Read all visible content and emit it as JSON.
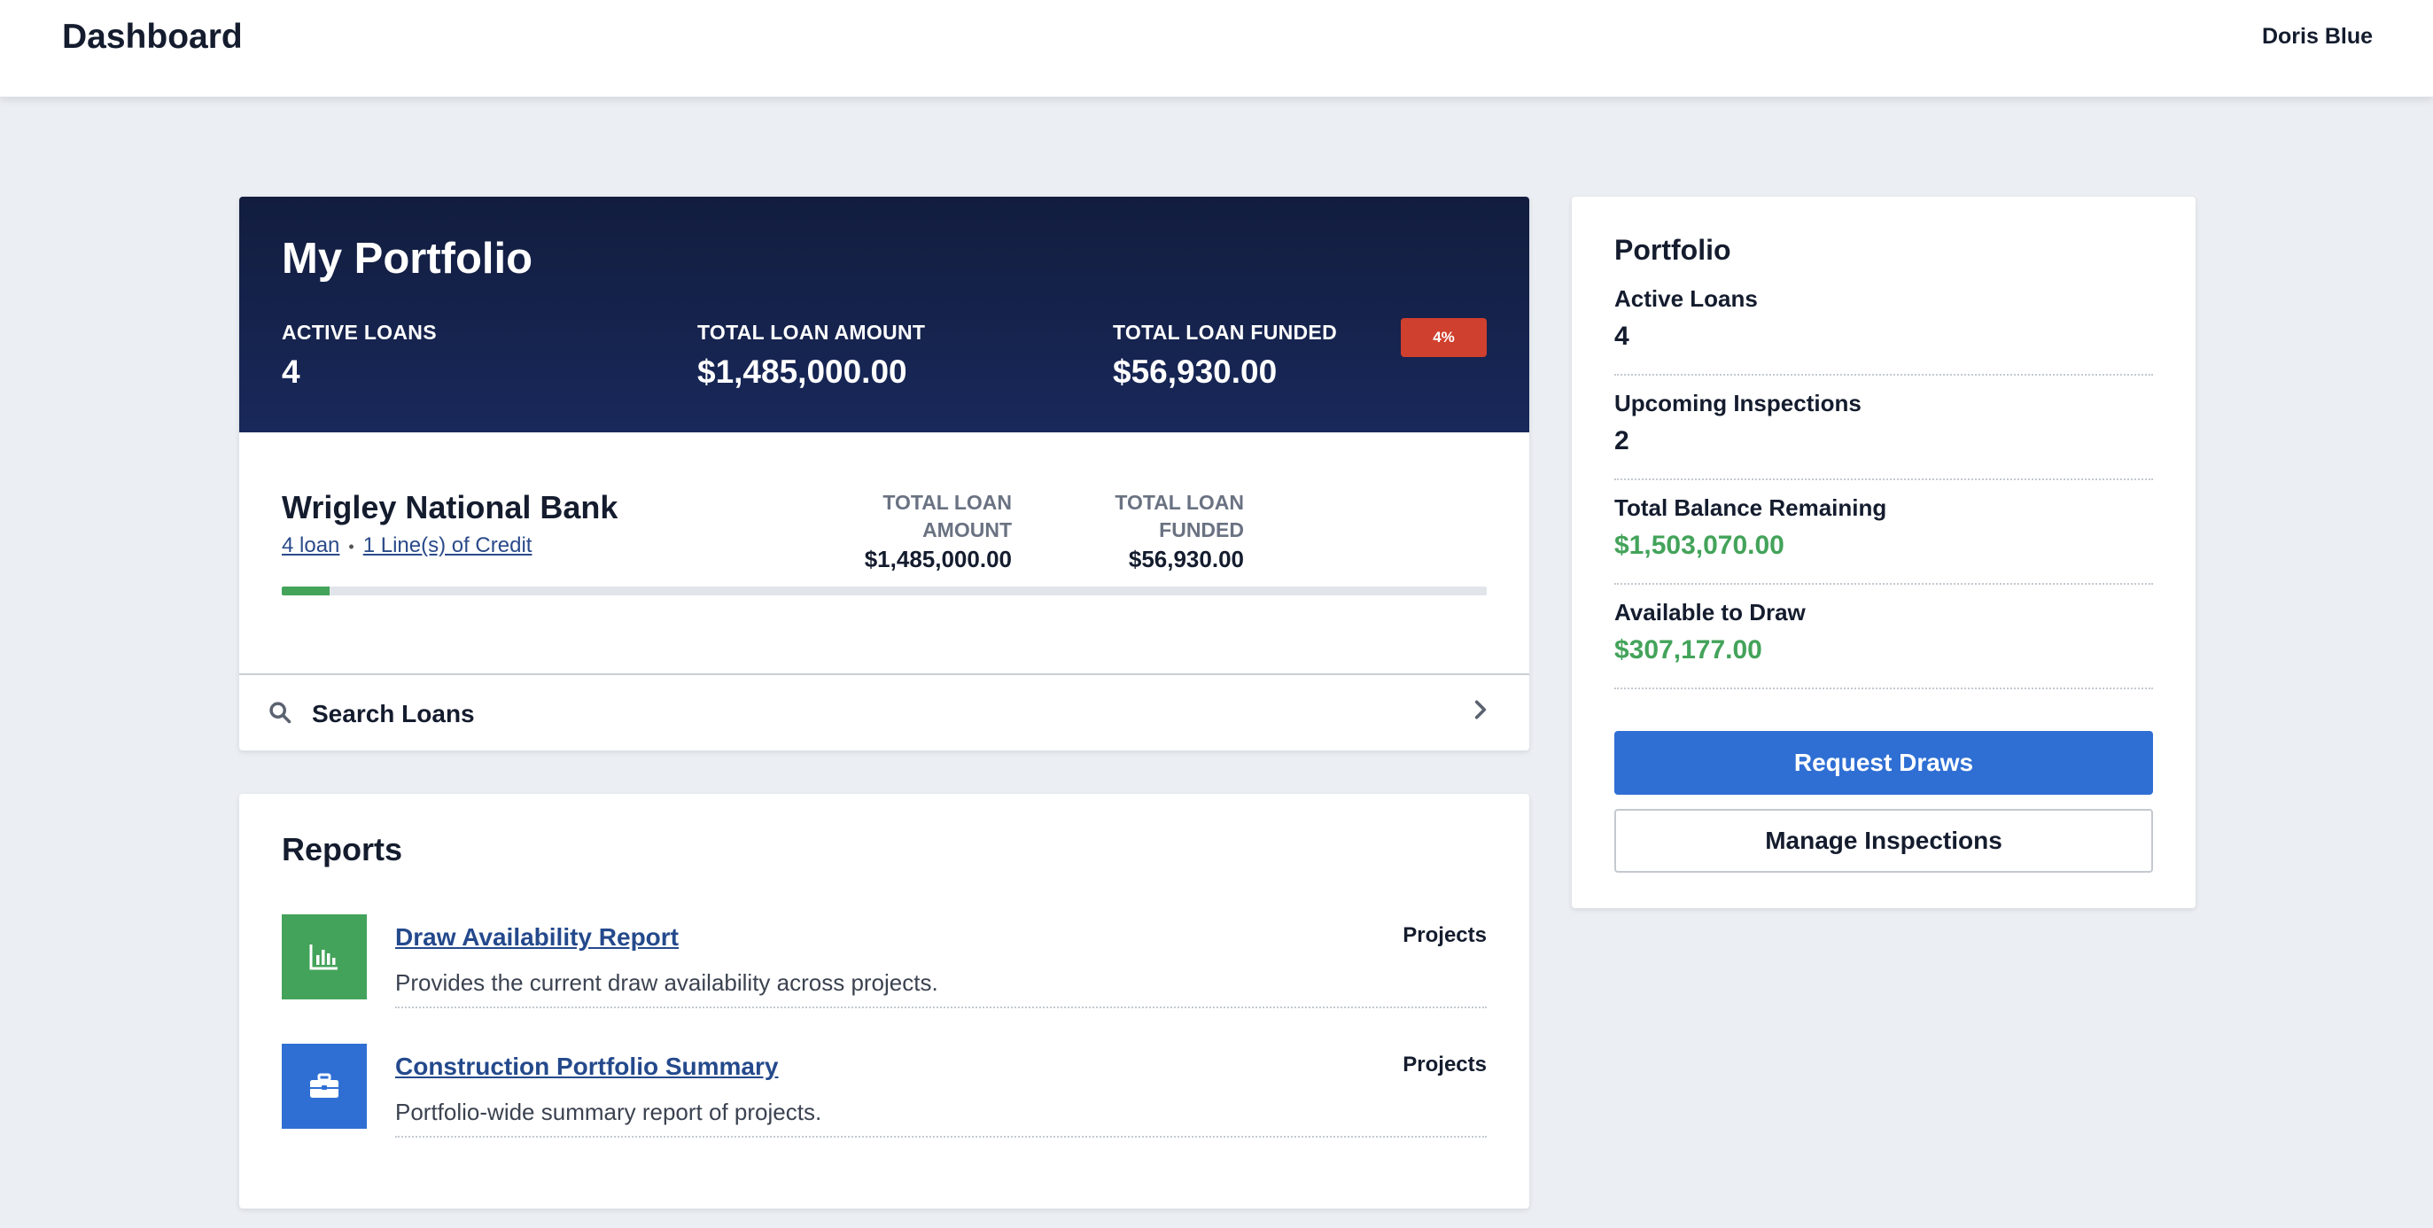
{
  "header": {
    "title": "Dashboard",
    "user": "Doris Blue"
  },
  "my_portfolio": {
    "title": "My Portfolio",
    "active_loans_label": "ACTIVE LOANS",
    "active_loans_value": "4",
    "total_loan_amount_label": "TOTAL LOAN AMOUNT",
    "total_loan_amount_value": "$1,485,000.00",
    "total_loan_funded_label": "TOTAL LOAN FUNDED",
    "total_loan_funded_value": "$56,930.00",
    "funded_badge": "4%",
    "badge_color": "#d0402e",
    "hero_color": "#16234d"
  },
  "bank": {
    "name": "Wrigley National Bank",
    "loans_link": "4 loan",
    "separator": "•",
    "credit_link": "1 Line(s) of Credit",
    "amount_label_1": "TOTAL LOAN",
    "amount_label_2": "AMOUNT",
    "amount_value": "$1,485,000.00",
    "funded_label_1": "TOTAL LOAN",
    "funded_label_2": "FUNDED",
    "funded_value": "$56,930.00",
    "funded_fraction": 0.04
  },
  "search": {
    "label": "Search Loans",
    "icon": "search-icon"
  },
  "reports": {
    "title": "Reports",
    "items": [
      {
        "name": "Draw Availability Report",
        "description": "Provides the current draw availability across projects.",
        "tag": "Projects",
        "icon": "bar-chart-icon",
        "icon_color": "#43a35a"
      },
      {
        "name": "Construction Portfolio Summary",
        "description": "Portfolio-wide summary report of projects.",
        "tag": "Projects",
        "icon": "briefcase-icon",
        "icon_color": "#2f6fd4"
      }
    ]
  },
  "sidebar": {
    "title": "Portfolio",
    "metrics": [
      {
        "label": "Active Loans",
        "value": "4"
      },
      {
        "label": "Upcoming Inspections",
        "value": "2"
      },
      {
        "label": "Total Balance Remaining",
        "value": "$1,503,070.00"
      },
      {
        "label": "Available to Draw",
        "value": "$307,177.00"
      }
    ],
    "request_draws_label": "Request Draws",
    "manage_inspections_label": "Manage Inspections",
    "accent_color": "#2f6fd4",
    "positive_color": "#43a35a"
  }
}
